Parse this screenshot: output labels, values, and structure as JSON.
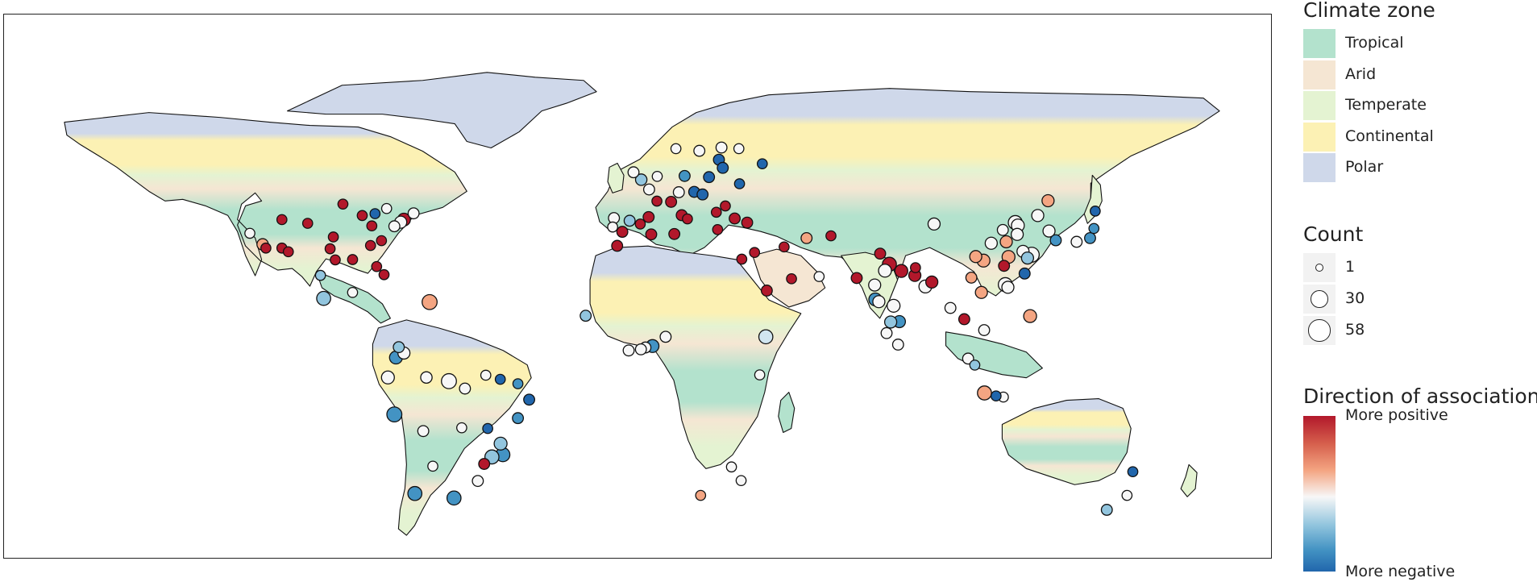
{
  "legend": {
    "climate_title": "Climate zone",
    "climate_zones": [
      {
        "label": "Tropical",
        "color": "#b3e2cd"
      },
      {
        "label": "Arid",
        "color": "#f5e6d3"
      },
      {
        "label": "Temperate",
        "color": "#e4f3d2"
      },
      {
        "label": "Continental",
        "color": "#fcf1b4"
      },
      {
        "label": "Polar",
        "color": "#cfd8ea"
      }
    ],
    "count_title": "Count",
    "count_levels": [
      {
        "label": "1",
        "value": 1
      },
      {
        "label": "30",
        "value": 30
      },
      {
        "label": "58",
        "value": 58
      }
    ],
    "direction_title": "Direction of association",
    "direction_top": "More positive",
    "direction_bottom": "More negative"
  },
  "colors": {
    "positive_strong": "#b2182b",
    "positive_weak": "#f4a582",
    "neutral": "#ffffff",
    "negative_weak": "#92c5de",
    "negative_strong": "#2166ac"
  },
  "chart_data": {
    "type": "map",
    "projection": "equirectangular",
    "ylim": [
      -58,
      84
    ],
    "points": [
      {
        "lon": -122,
        "lat": 37,
        "count": 3,
        "color": "#f7f7f7"
      },
      {
        "lon": -118,
        "lat": 34,
        "count": 6,
        "color": "#f4a582"
      },
      {
        "lon": -117,
        "lat": 33,
        "count": 3,
        "color": "#b2182b"
      },
      {
        "lon": -112,
        "lat": 33,
        "count": 3,
        "color": "#b2182b"
      },
      {
        "lon": -110,
        "lat": 32,
        "count": 3,
        "color": "#b2182b"
      },
      {
        "lon": -104,
        "lat": 39.7,
        "count": 3,
        "color": "#b2182b"
      },
      {
        "lon": -112,
        "lat": 40.7,
        "count": 3,
        "color": "#b2182b"
      },
      {
        "lon": -93,
        "lat": 44.9,
        "count": 3,
        "color": "#b2182b"
      },
      {
        "lon": -96,
        "lat": 36,
        "count": 3,
        "color": "#b2182b"
      },
      {
        "lon": -97,
        "lat": 32.8,
        "count": 3,
        "color": "#b2182b"
      },
      {
        "lon": -95.4,
        "lat": 29.8,
        "count": 3,
        "color": "#b2182b"
      },
      {
        "lon": -90,
        "lat": 29.9,
        "count": 3,
        "color": "#b2182b"
      },
      {
        "lon": -87,
        "lat": 41.8,
        "count": 3,
        "color": "#b2182b"
      },
      {
        "lon": -84,
        "lat": 39,
        "count": 3,
        "color": "#b2182b"
      },
      {
        "lon": -84.4,
        "lat": 33.7,
        "count": 3,
        "color": "#b2182b"
      },
      {
        "lon": -81,
        "lat": 35,
        "count": 3,
        "color": "#b2182b"
      },
      {
        "lon": -80.2,
        "lat": 25.8,
        "count": 3,
        "color": "#b2182b"
      },
      {
        "lon": -82.5,
        "lat": 28,
        "count": 3,
        "color": "#b2182b"
      },
      {
        "lon": -77,
        "lat": 38.9,
        "count": 5,
        "color": "#f7f7f7"
      },
      {
        "lon": -75,
        "lat": 40,
        "count": 8,
        "color": "#f7f7f7"
      },
      {
        "lon": -74,
        "lat": 40.7,
        "count": 10,
        "color": "#b2182b"
      },
      {
        "lon": -71,
        "lat": 42.4,
        "count": 5,
        "color": "#f7f7f7"
      },
      {
        "lon": -79.4,
        "lat": 43.7,
        "count": 3,
        "color": "#f7f7f7"
      },
      {
        "lon": -83,
        "lat": 42.3,
        "count": 3,
        "color": "#2166ac"
      },
      {
        "lon": -99,
        "lat": 19.4,
        "count": 14,
        "color": "#92c5de"
      },
      {
        "lon": -90,
        "lat": 21,
        "count": 3,
        "color": "#f7f7f7"
      },
      {
        "lon": -100,
        "lat": 25.6,
        "count": 3,
        "color": "#92c5de"
      },
      {
        "lon": -66,
        "lat": 18.4,
        "count": 18,
        "color": "#f4a582"
      },
      {
        "lon": -74,
        "lat": 4.6,
        "count": 8,
        "color": "#f7f7f7"
      },
      {
        "lon": -76.5,
        "lat": 3.4,
        "count": 10,
        "color": "#4393c3"
      },
      {
        "lon": -75.6,
        "lat": 6.2,
        "count": 5,
        "color": "#92c5de"
      },
      {
        "lon": -79,
        "lat": -2,
        "count": 10,
        "color": "#f7f7f7"
      },
      {
        "lon": -77,
        "lat": -12,
        "count": 18,
        "color": "#4393c3"
      },
      {
        "lon": -67,
        "lat": -2,
        "count": 6,
        "color": "#f7f7f7"
      },
      {
        "lon": -60,
        "lat": -3,
        "count": 18,
        "color": "#f7f7f7"
      },
      {
        "lon": -55,
        "lat": -5,
        "count": 5,
        "color": "#f7f7f7"
      },
      {
        "lon": -48.5,
        "lat": -1.4,
        "count": 3,
        "color": "#f7f7f7"
      },
      {
        "lon": -44,
        "lat": -2.5,
        "count": 3,
        "color": "#2166ac"
      },
      {
        "lon": -38.5,
        "lat": -3.7,
        "count": 3,
        "color": "#4393c3"
      },
      {
        "lon": -35,
        "lat": -8,
        "count": 5,
        "color": "#2166ac"
      },
      {
        "lon": -38.5,
        "lat": -13,
        "count": 5,
        "color": "#4393c3"
      },
      {
        "lon": -56,
        "lat": -15.6,
        "count": 3,
        "color": "#f7f7f7"
      },
      {
        "lon": -47.9,
        "lat": -15.8,
        "count": 3,
        "color": "#2166ac"
      },
      {
        "lon": -43.9,
        "lat": -19.9,
        "count": 10,
        "color": "#92c5de"
      },
      {
        "lon": -43.2,
        "lat": -22.9,
        "count": 14,
        "color": "#4393c3"
      },
      {
        "lon": -46.6,
        "lat": -23.5,
        "count": 14,
        "color": "#92c5de"
      },
      {
        "lon": -49,
        "lat": -25.4,
        "count": 5,
        "color": "#b2182b"
      },
      {
        "lon": -51,
        "lat": -30,
        "count": 5,
        "color": "#f7f7f7"
      },
      {
        "lon": -68,
        "lat": -16.5,
        "count": 5,
        "color": "#f7f7f7"
      },
      {
        "lon": -65,
        "lat": -26,
        "count": 3,
        "color": "#f7f7f7"
      },
      {
        "lon": -70.6,
        "lat": -33.4,
        "count": 14,
        "color": "#4393c3"
      },
      {
        "lon": -58.4,
        "lat": -34.6,
        "count": 14,
        "color": "#4393c3"
      },
      {
        "lon": -9,
        "lat": 38.7,
        "count": 3,
        "color": "#f7f7f7"
      },
      {
        "lon": -8.6,
        "lat": 41.1,
        "count": 5,
        "color": "#f7f7f7"
      },
      {
        "lon": -3.7,
        "lat": 40.4,
        "count": 5,
        "color": "#92c5de"
      },
      {
        "lon": -6,
        "lat": 37.4,
        "count": 5,
        "color": "#b2182b"
      },
      {
        "lon": 2.2,
        "lat": 41.4,
        "count": 5,
        "color": "#b2182b"
      },
      {
        "lon": -0.4,
        "lat": 39.5,
        "count": 3,
        "color": "#b2182b"
      },
      {
        "lon": 2.35,
        "lat": 48.85,
        "count": 5,
        "color": "#f7f7f7"
      },
      {
        "lon": 4.8,
        "lat": 45.7,
        "count": 3,
        "color": "#b2182b"
      },
      {
        "lon": -0.1,
        "lat": 51.5,
        "count": 6,
        "color": "#92c5de"
      },
      {
        "lon": -2.5,
        "lat": 53.5,
        "count": 5,
        "color": "#f7f7f7"
      },
      {
        "lon": 4.9,
        "lat": 52.4,
        "count": 3,
        "color": "#f7f7f7"
      },
      {
        "lon": 13.4,
        "lat": 52.5,
        "count": 5,
        "color": "#4393c3"
      },
      {
        "lon": 11.6,
        "lat": 48.1,
        "count": 5,
        "color": "#f7f7f7"
      },
      {
        "lon": 9.2,
        "lat": 45.5,
        "count": 5,
        "color": "#b2182b"
      },
      {
        "lon": 12.5,
        "lat": 41.9,
        "count": 5,
        "color": "#b2182b"
      },
      {
        "lon": 14.3,
        "lat": 40.9,
        "count": 3,
        "color": "#b2182b"
      },
      {
        "lon": 16.4,
        "lat": 48.2,
        "count": 5,
        "color": "#2166ac"
      },
      {
        "lon": 19,
        "lat": 47.5,
        "count": 5,
        "color": "#2166ac"
      },
      {
        "lon": 21,
        "lat": 52.2,
        "count": 5,
        "color": "#2166ac"
      },
      {
        "lon": 24.1,
        "lat": 56.9,
        "count": 5,
        "color": "#2166ac"
      },
      {
        "lon": 25.3,
        "lat": 54.7,
        "count": 5,
        "color": "#2166ac"
      },
      {
        "lon": 18,
        "lat": 59.3,
        "count": 5,
        "color": "#f7f7f7"
      },
      {
        "lon": 10.7,
        "lat": 59.9,
        "count": 3,
        "color": "#f7f7f7"
      },
      {
        "lon": 24.9,
        "lat": 60.2,
        "count": 5,
        "color": "#f7f7f7"
      },
      {
        "lon": 30.3,
        "lat": 59.9,
        "count": 3,
        "color": "#f7f7f7"
      },
      {
        "lon": 37.6,
        "lat": 55.8,
        "count": 3,
        "color": "#2166ac"
      },
      {
        "lon": 30.5,
        "lat": 50.4,
        "count": 3,
        "color": "#2166ac"
      },
      {
        "lon": 26.1,
        "lat": 44.4,
        "count": 3,
        "color": "#b2182b"
      },
      {
        "lon": 23.3,
        "lat": 42.7,
        "count": 3,
        "color": "#b2182b"
      },
      {
        "lon": 23.7,
        "lat": 38,
        "count": 3,
        "color": "#b2182b"
      },
      {
        "lon": 29,
        "lat": 41,
        "count": 5,
        "color": "#b2182b"
      },
      {
        "lon": 32.9,
        "lat": 39.9,
        "count": 5,
        "color": "#b2182b"
      },
      {
        "lon": 35.2,
        "lat": 31.8,
        "count": 3,
        "color": "#b2182b"
      },
      {
        "lon": 31.2,
        "lat": 30,
        "count": 3,
        "color": "#b2182b"
      },
      {
        "lon": -7.6,
        "lat": 33.6,
        "count": 5,
        "color": "#b2182b"
      },
      {
        "lon": 3,
        "lat": 36.7,
        "count": 5,
        "color": "#b2182b"
      },
      {
        "lon": 10.2,
        "lat": 36.8,
        "count": 5,
        "color": "#b2182b"
      },
      {
        "lon": 51.4,
        "lat": 35.7,
        "count": 5,
        "color": "#f4a582"
      },
      {
        "lon": 44.4,
        "lat": 33.3,
        "count": 3,
        "color": "#b2182b"
      },
      {
        "lon": 46.7,
        "lat": 24.7,
        "count": 3,
        "color": "#b2182b"
      },
      {
        "lon": 39,
        "lat": 21.5,
        "count": 5,
        "color": "#b2182b"
      },
      {
        "lon": 55.3,
        "lat": 25.3,
        "count": 3,
        "color": "#f7f7f7"
      },
      {
        "lon": 59,
        "lat": 36.3,
        "count": 3,
        "color": "#b2182b"
      },
      {
        "lon": 67,
        "lat": 24.9,
        "count": 5,
        "color": "#b2182b"
      },
      {
        "lon": 74.3,
        "lat": 31.5,
        "count": 5,
        "color": "#b2182b"
      },
      {
        "lon": 77.2,
        "lat": 28.6,
        "count": 14,
        "color": "#b2182b"
      },
      {
        "lon": 75.8,
        "lat": 26.9,
        "count": 10,
        "color": "#f7f7f7"
      },
      {
        "lon": 80.9,
        "lat": 26.8,
        "count": 10,
        "color": "#b2182b"
      },
      {
        "lon": 85.1,
        "lat": 25.6,
        "count": 8,
        "color": "#b2182b"
      },
      {
        "lon": 88.4,
        "lat": 22.6,
        "count": 10,
        "color": "#f7f7f7"
      },
      {
        "lon": 90.4,
        "lat": 23.8,
        "count": 8,
        "color": "#b2182b"
      },
      {
        "lon": 72.8,
        "lat": 19.1,
        "count": 10,
        "color": "#4393c3"
      },
      {
        "lon": 73.9,
        "lat": 18.5,
        "count": 8,
        "color": "#f7f7f7"
      },
      {
        "lon": 78.5,
        "lat": 17.4,
        "count": 10,
        "color": "#f7f7f7"
      },
      {
        "lon": 80.3,
        "lat": 13.1,
        "count": 8,
        "color": "#4393c3"
      },
      {
        "lon": 77.6,
        "lat": 13,
        "count": 8,
        "color": "#92c5de"
      },
      {
        "lon": 76.3,
        "lat": 10,
        "count": 5,
        "color": "#f7f7f7"
      },
      {
        "lon": 72.6,
        "lat": 23,
        "count": 8,
        "color": "#f7f7f7"
      },
      {
        "lon": 85.3,
        "lat": 27.7,
        "count": 3,
        "color": "#b2182b"
      },
      {
        "lon": 79.9,
        "lat": 6.9,
        "count": 5,
        "color": "#f7f7f7"
      },
      {
        "lon": 96.2,
        "lat": 16.8,
        "count": 5,
        "color": "#f7f7f7"
      },
      {
        "lon": 100.5,
        "lat": 13.75,
        "count": 5,
        "color": "#b2182b"
      },
      {
        "lon": 105.85,
        "lat": 21,
        "count": 8,
        "color": "#f4a582"
      },
      {
        "lon": 106.7,
        "lat": 10.8,
        "count": 5,
        "color": "#f7f7f7"
      },
      {
        "lon": 101.7,
        "lat": 3.1,
        "count": 5,
        "color": "#f7f7f7"
      },
      {
        "lon": 103.8,
        "lat": 1.35,
        "count": 3,
        "color": "#92c5de"
      },
      {
        "lon": 106.8,
        "lat": -6.2,
        "count": 14,
        "color": "#f4a582"
      },
      {
        "lon": 112.7,
        "lat": -7.3,
        "count": 3,
        "color": "#f7f7f7"
      },
      {
        "lon": 110.4,
        "lat": -7,
        "count": 3,
        "color": "#2166ac"
      },
      {
        "lon": 121,
        "lat": 14.6,
        "count": 10,
        "color": "#f4a582"
      },
      {
        "lon": 116.4,
        "lat": 39.9,
        "count": 14,
        "color": "#f7f7f7"
      },
      {
        "lon": 117.2,
        "lat": 39.1,
        "count": 10,
        "color": "#f7f7f7"
      },
      {
        "lon": 121.5,
        "lat": 31.2,
        "count": 18,
        "color": "#f7f7f7"
      },
      {
        "lon": 113.3,
        "lat": 23.1,
        "count": 14,
        "color": "#f7f7f7"
      },
      {
        "lon": 114.1,
        "lat": 22.4,
        "count": 8,
        "color": "#f7f7f7"
      },
      {
        "lon": 104.1,
        "lat": 30.7,
        "count": 8,
        "color": "#f4a582"
      },
      {
        "lon": 106.5,
        "lat": 29.6,
        "count": 10,
        "color": "#f4a582"
      },
      {
        "lon": 108.9,
        "lat": 34.3,
        "count": 8,
        "color": "#f7f7f7"
      },
      {
        "lon": 114.3,
        "lat": 30.6,
        "count": 10,
        "color": "#f4a582"
      },
      {
        "lon": 118.8,
        "lat": 32.1,
        "count": 8,
        "color": "#f7f7f7"
      },
      {
        "lon": 120.2,
        "lat": 30.3,
        "count": 8,
        "color": "#92c5de"
      },
      {
        "lon": 119.3,
        "lat": 26.1,
        "count": 5,
        "color": "#2166ac"
      },
      {
        "lon": 112.9,
        "lat": 28.2,
        "count": 5,
        "color": "#b2182b"
      },
      {
        "lon": 102.7,
        "lat": 25,
        "count": 5,
        "color": "#f4a582"
      },
      {
        "lon": 126.6,
        "lat": 45.8,
        "count": 8,
        "color": "#f4a582"
      },
      {
        "lon": 123.4,
        "lat": 41.8,
        "count": 8,
        "color": "#f7f7f7"
      },
      {
        "lon": 117,
        "lat": 36.7,
        "count": 8,
        "color": "#f7f7f7"
      },
      {
        "lon": 113.6,
        "lat": 34.7,
        "count": 8,
        "color": "#f4a582"
      },
      {
        "lon": 112.5,
        "lat": 37.9,
        "count": 5,
        "color": "#f7f7f7"
      },
      {
        "lon": 91.1,
        "lat": 39.5,
        "count": 8,
        "color": "#f7f7f7"
      },
      {
        "lon": 126.9,
        "lat": 37.6,
        "count": 8,
        "color": "#f7f7f7"
      },
      {
        "lon": 129,
        "lat": 35.1,
        "count": 5,
        "color": "#4393c3"
      },
      {
        "lon": 139.7,
        "lat": 35.7,
        "count": 5,
        "color": "#4393c3"
      },
      {
        "lon": 135.5,
        "lat": 34.7,
        "count": 5,
        "color": "#f7f7f7"
      },
      {
        "lon": 141.3,
        "lat": 43,
        "count": 3,
        "color": "#2166ac"
      },
      {
        "lon": 140.9,
        "lat": 38.3,
        "count": 3,
        "color": "#4393c3"
      },
      {
        "lon": -17.4,
        "lat": 14.7,
        "count": 5,
        "color": "#92c5de"
      },
      {
        "lon": -4,
        "lat": 5.3,
        "count": 5,
        "color": "#f7f7f7"
      },
      {
        "lon": 3.4,
        "lat": 6.5,
        "count": 10,
        "color": "#4393c3"
      },
      {
        "lon": 1.2,
        "lat": 6.1,
        "count": 5,
        "color": "#f7f7f7"
      },
      {
        "lon": 7.5,
        "lat": 9,
        "count": 5,
        "color": "#f7f7f7"
      },
      {
        "lon": -0.2,
        "lat": 5.6,
        "count": 5,
        "color": "#f7f7f7"
      },
      {
        "lon": 38.7,
        "lat": 9,
        "count": 14,
        "color": "#d1e5f0"
      },
      {
        "lon": 36.8,
        "lat": -1.3,
        "count": 3,
        "color": "#f7f7f7"
      },
      {
        "lon": 28,
        "lat": -26.2,
        "count": 3,
        "color": "#f7f7f7"
      },
      {
        "lon": 31,
        "lat": -29.9,
        "count": 3,
        "color": "#f7f7f7"
      },
      {
        "lon": 18.4,
        "lat": -33.9,
        "count": 3,
        "color": "#f4a582"
      },
      {
        "lon": 151.2,
        "lat": -33.9,
        "count": 3,
        "color": "#f7f7f7"
      },
      {
        "lon": 153,
        "lat": -27.5,
        "count": 3,
        "color": "#2166ac"
      },
      {
        "lon": 144.9,
        "lat": -37.8,
        "count": 5,
        "color": "#92c5de"
      }
    ]
  }
}
